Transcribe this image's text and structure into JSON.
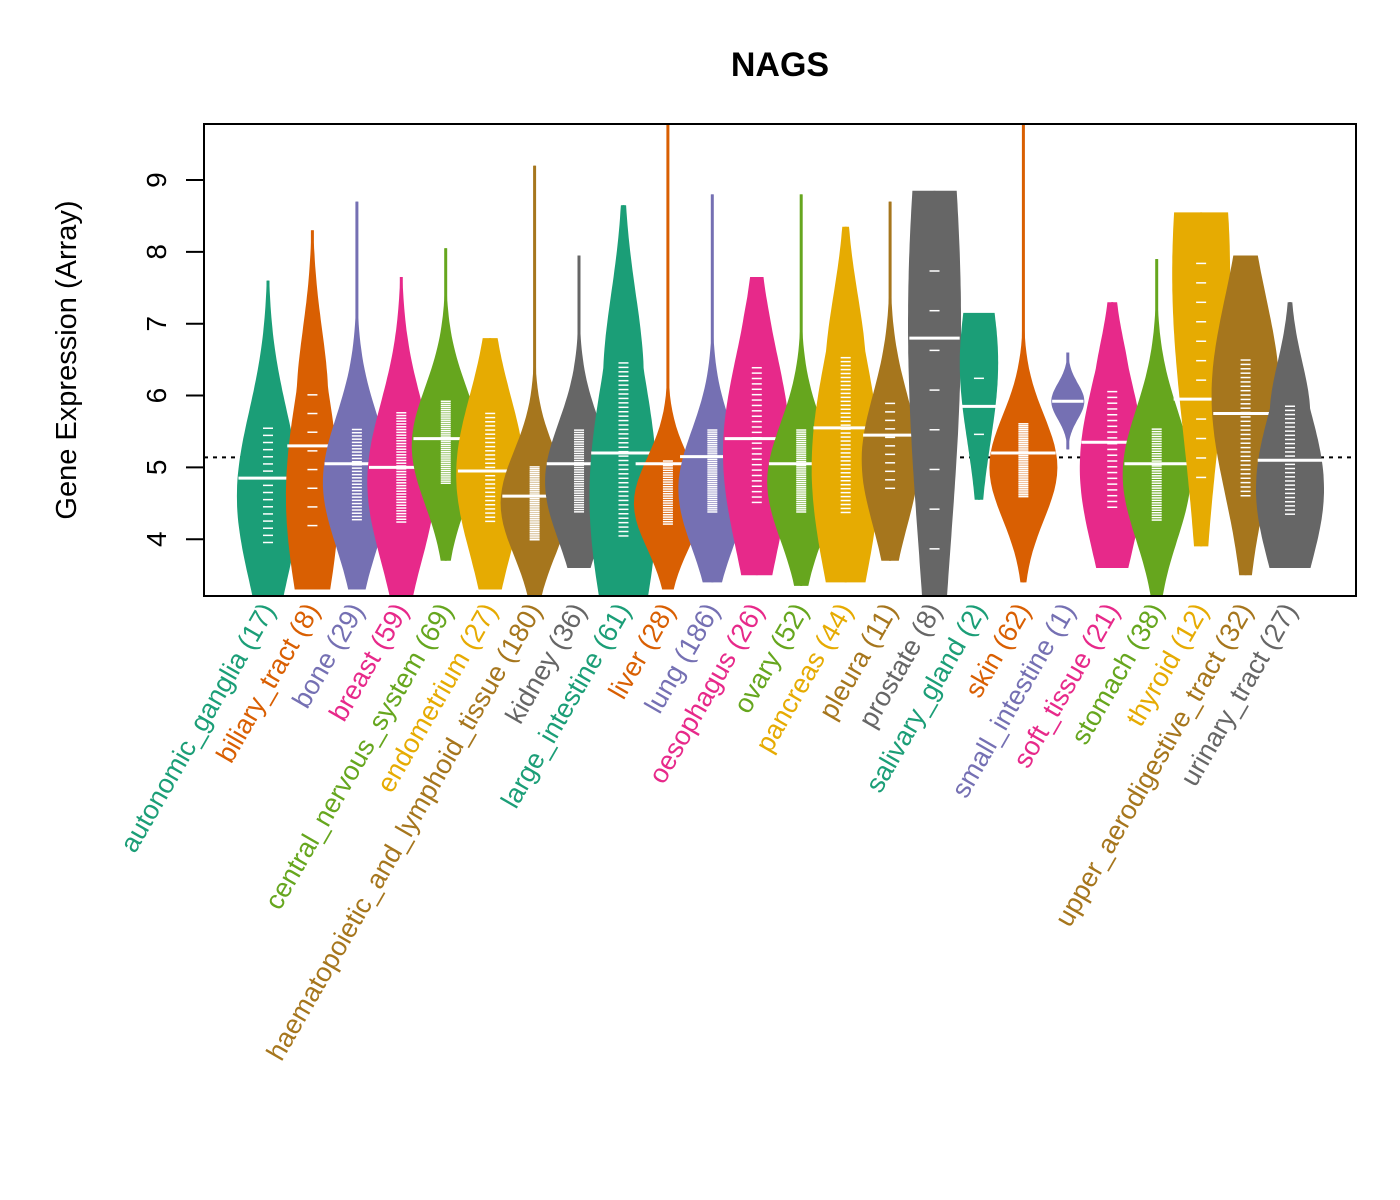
{
  "chart_data": {
    "type": "violin",
    "title": "NAGS",
    "xlabel": "",
    "ylabel": "Gene Expression (Array)",
    "ylim": [
      3.21,
      9.78
    ],
    "yticks": [
      4,
      5,
      6,
      7,
      8,
      9
    ],
    "reference_line": 5.14,
    "grid": false,
    "legend": "none",
    "categories": [
      {
        "name": "autonomic_ganglia",
        "n": 17,
        "color": "#1B9E77",
        "min": 3.2,
        "max": 7.6,
        "median": 4.85,
        "q1": 4.1,
        "q3": 5.4,
        "peak": 4.6
      },
      {
        "name": "biliary_tract",
        "n": 8,
        "color": "#D95F02",
        "min": 3.3,
        "max": 8.3,
        "median": 5.3,
        "q1": 4.3,
        "q3": 5.9,
        "peak": 4.6
      },
      {
        "name": "bone",
        "n": 29,
        "color": "#7570B3",
        "min": 3.3,
        "max": 8.7,
        "median": 5.05,
        "q1": 4.4,
        "q3": 5.4,
        "peak": 4.8
      },
      {
        "name": "breast",
        "n": 59,
        "color": "#E7298A",
        "min": 3.2,
        "max": 7.65,
        "median": 5.0,
        "q1": 4.4,
        "q3": 5.6,
        "peak": 4.8
      },
      {
        "name": "central_nervous_system",
        "n": 69,
        "color": "#66A61E",
        "min": 3.7,
        "max": 8.05,
        "median": 5.4,
        "q1": 4.9,
        "q3": 5.8,
        "peak": 5.3
      },
      {
        "name": "endometrium",
        "n": 27,
        "color": "#E6AB02",
        "min": 3.3,
        "max": 6.8,
        "median": 4.95,
        "q1": 4.4,
        "q3": 5.6,
        "peak": 4.9
      },
      {
        "name": "haematopoietic_and_lymphoid_tissue",
        "n": 180,
        "color": "#A6761D",
        "min": 3.2,
        "max": 9.2,
        "median": 4.6,
        "q1": 4.1,
        "q3": 4.9,
        "peak": 4.5
      },
      {
        "name": "kidney",
        "n": 36,
        "color": "#666666",
        "min": 3.6,
        "max": 7.95,
        "median": 5.05,
        "q1": 4.5,
        "q3": 5.4,
        "peak": 4.8
      },
      {
        "name": "large_intestine",
        "n": 61,
        "color": "#1B9E77",
        "min": 3.2,
        "max": 8.65,
        "median": 5.2,
        "q1": 4.3,
        "q3": 6.2,
        "peak": 4.6
      },
      {
        "name": "liver",
        "n": 28,
        "color": "#D95F02",
        "min": 3.3,
        "max": 9.78,
        "median": 5.05,
        "q1": 4.3,
        "q3": 5.0,
        "peak": 4.5
      },
      {
        "name": "lung",
        "n": 186,
        "color": "#7570B3",
        "min": 3.4,
        "max": 8.8,
        "median": 5.15,
        "q1": 4.5,
        "q3": 5.4,
        "peak": 4.7
      },
      {
        "name": "oesophagus",
        "n": 26,
        "color": "#E7298A",
        "min": 3.5,
        "max": 7.65,
        "median": 5.4,
        "q1": 4.7,
        "q3": 6.2,
        "peak": 5.2
      },
      {
        "name": "ovary",
        "n": 52,
        "color": "#66A61E",
        "min": 3.35,
        "max": 8.8,
        "median": 5.05,
        "q1": 4.5,
        "q3": 5.4,
        "peak": 4.8
      },
      {
        "name": "pancreas",
        "n": 44,
        "color": "#E6AB02",
        "min": 3.4,
        "max": 8.35,
        "median": 5.55,
        "q1": 4.6,
        "q3": 6.3,
        "peak": 5.0
      },
      {
        "name": "pleura",
        "n": 11,
        "color": "#A6761D",
        "min": 3.7,
        "max": 8.7,
        "median": 5.45,
        "q1": 4.8,
        "q3": 5.8,
        "peak": 5.1
      },
      {
        "name": "prostate",
        "n": 8,
        "color": "#666666",
        "min": 3.2,
        "max": 8.85,
        "median": 6.8,
        "q1": 4.1,
        "q3": 7.5,
        "peak": 7.0
      },
      {
        "name": "salivary_gland",
        "n": 2,
        "color": "#1B9E77",
        "min": 4.55,
        "max": 7.15,
        "median": 5.85,
        "q1": 5.25,
        "q3": 6.45,
        "peak": 6.45
      },
      {
        "name": "skin",
        "n": 62,
        "color": "#D95F02",
        "min": 3.4,
        "max": 9.78,
        "median": 5.2,
        "q1": 4.7,
        "q3": 5.5,
        "peak": 5.0
      },
      {
        "name": "small_intestine",
        "n": 1,
        "color": "#7570B3",
        "min": 5.25,
        "max": 6.6,
        "median": 5.92,
        "q1": 5.92,
        "q3": 5.92,
        "peak": 5.92
      },
      {
        "name": "soft_tissue",
        "n": 21,
        "color": "#E7298A",
        "min": 3.6,
        "max": 7.3,
        "median": 5.35,
        "q1": 4.6,
        "q3": 5.9,
        "peak": 5.0
      },
      {
        "name": "stomach",
        "n": 38,
        "color": "#66A61E",
        "min": 3.2,
        "max": 7.9,
        "median": 5.05,
        "q1": 4.4,
        "q3": 5.4,
        "peak": 4.9
      },
      {
        "name": "thyroid",
        "n": 12,
        "color": "#E6AB02",
        "min": 3.9,
        "max": 8.55,
        "median": 5.95,
        "q1": 5.1,
        "q3": 7.6,
        "peak": 7.7
      },
      {
        "name": "upper_aerodigestive_tract",
        "n": 32,
        "color": "#A6761D",
        "min": 3.5,
        "max": 7.95,
        "median": 5.75,
        "q1": 4.8,
        "q3": 6.3,
        "peak": 6.0
      },
      {
        "name": "urinary_tract",
        "n": 27,
        "color": "#666666",
        "min": 3.6,
        "max": 7.3,
        "median": 5.1,
        "q1": 4.5,
        "q3": 5.7,
        "peak": 4.7
      }
    ]
  }
}
